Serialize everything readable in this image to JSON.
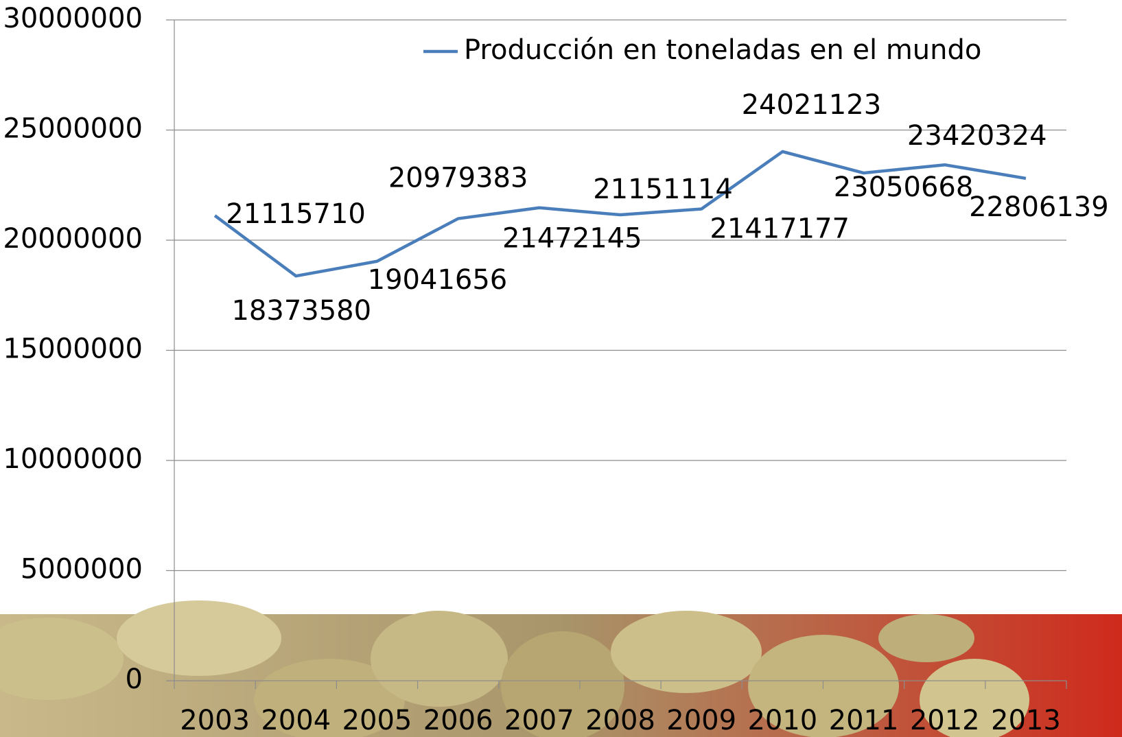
{
  "chart_data": {
    "type": "line",
    "categories": [
      "2003",
      "2004",
      "2005",
      "2006",
      "2007",
      "2008",
      "2009",
      "2010",
      "2011",
      "2012",
      "2013"
    ],
    "series": [
      {
        "name": "Producción en toneladas en el mundo",
        "color": "#4a7ebb",
        "values": [
          21115710,
          18373580,
          19041656,
          20979383,
          21472145,
          21151114,
          21417177,
          24021123,
          23050668,
          23420324,
          22806139
        ]
      }
    ],
    "ylim": [
      0,
      30000000
    ],
    "yticks": [
      0,
      5000000,
      10000000,
      15000000,
      20000000,
      25000000,
      30000000
    ],
    "grid": true,
    "legend": "top"
  }
}
